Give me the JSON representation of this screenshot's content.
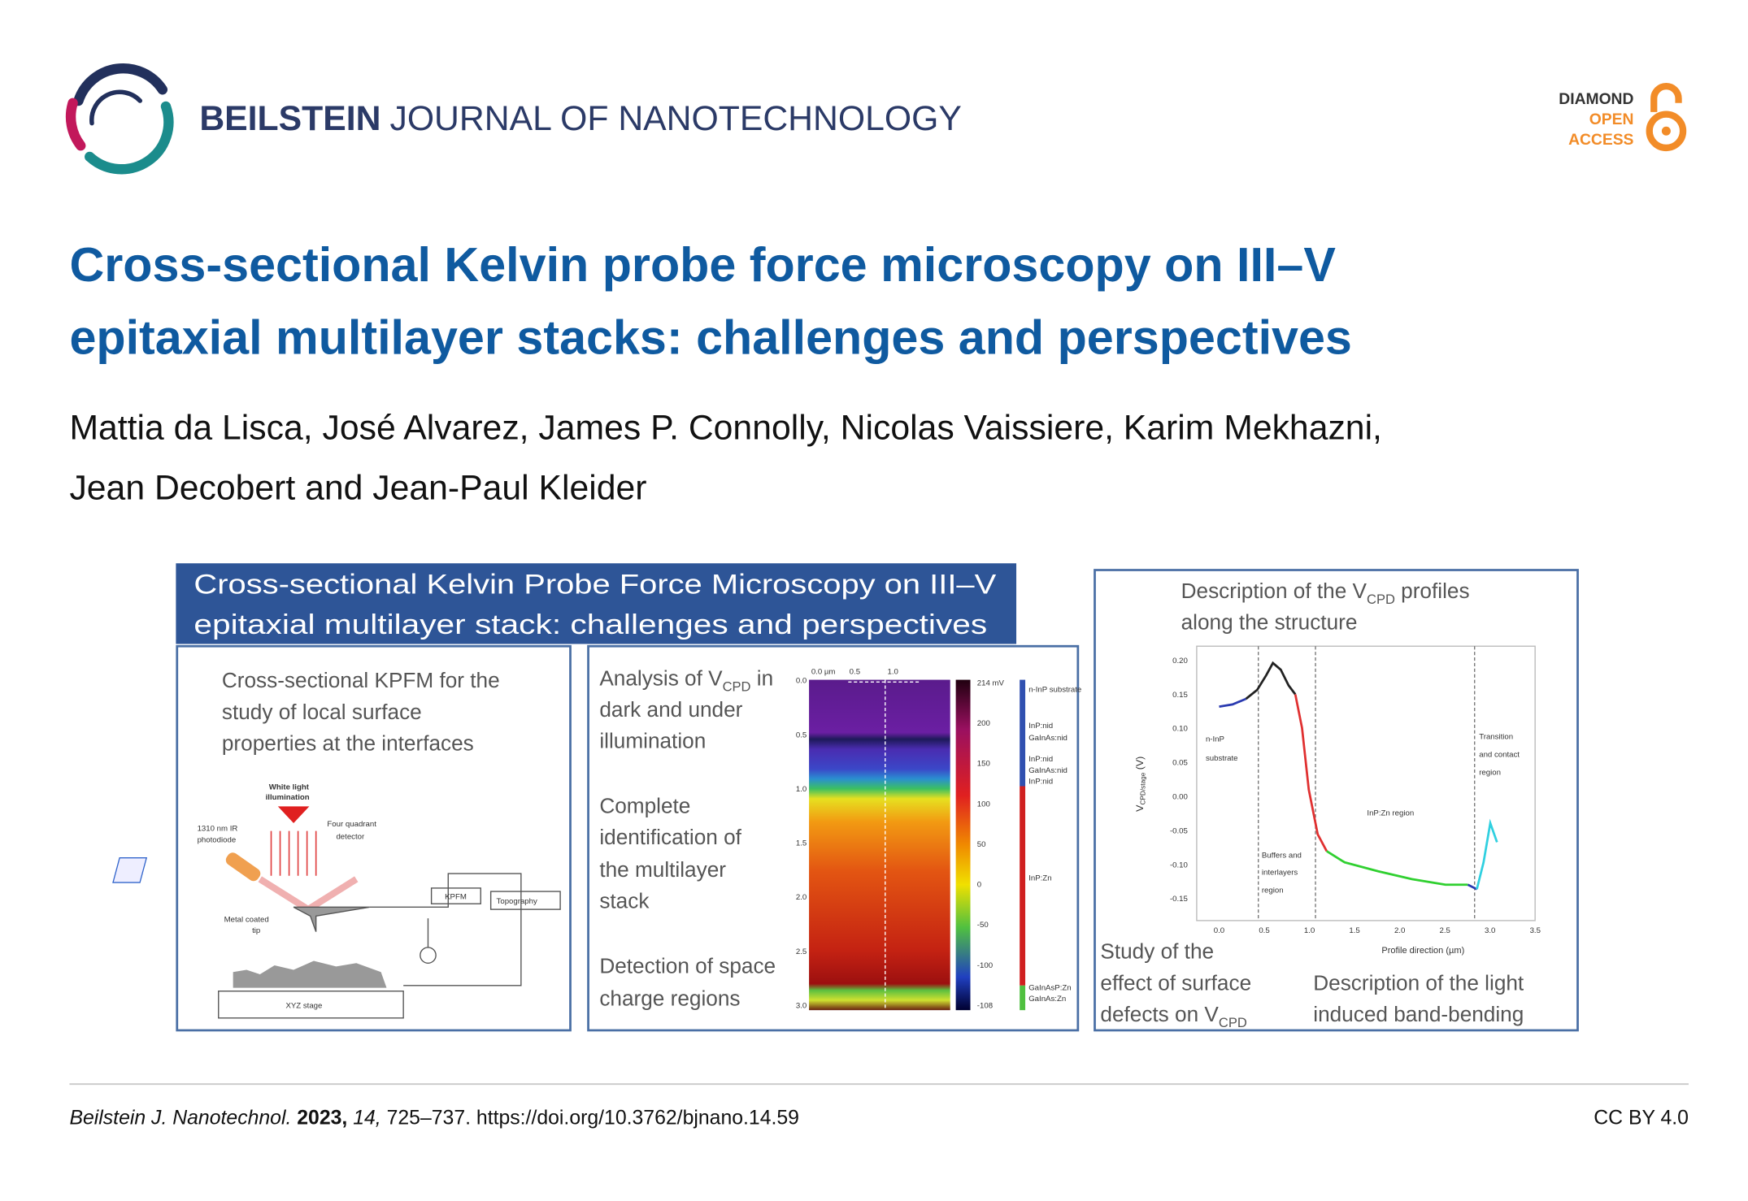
{
  "header": {
    "journal_bold": "BEILSTEIN",
    "journal_rest": "JOURNAL OF NANOTECHNOLOGY",
    "badge": [
      "DIAMOND",
      "OPEN",
      "ACCESS"
    ]
  },
  "article": {
    "title": [
      "Cross-sectional Kelvin probe force microscopy on III–V",
      "epitaxial multilayer stacks: challenges and perspectives"
    ],
    "authors": [
      "Mattia da Lisca, José Alvarez, James P. Connolly, Nicolas Vaissiere, Karim Mekhazni,",
      "Jean Decobert and Jean-Paul Kleider"
    ]
  },
  "graphical_abstract": {
    "heading": [
      "Cross-sectional Kelvin Probe Force Microscopy on III–V",
      "epitaxial multilayer stack: challenges and perspectives"
    ],
    "left_panel": {
      "text": [
        "Cross-sectional KPFM for the",
        "study of local surface",
        "properties at the interfaces"
      ],
      "labels": [
        "White light",
        "illumination",
        "1310 nm IR",
        "photodiode",
        "Four quadrant",
        "detector",
        "KPFM",
        "Topography",
        "Metal coated",
        "tip",
        "XYZ stage"
      ]
    },
    "middle_panel": {
      "analysis": [
        "Analysis of V",
        "CPD",
        " in"
      ],
      "text": [
        "dark and under",
        "illumination",
        "Complete",
        "identification of",
        "the multilayer",
        "stack",
        "Detection of space",
        "charge regions"
      ],
      "x_ticks": [
        "0.0 µm",
        "0.5",
        "1.0"
      ],
      "y_ticks": [
        "0.0",
        "0.5",
        "1.0",
        "1.5",
        "2.0",
        "2.5",
        "3.0"
      ],
      "colorbar_ticks": [
        "214 mV",
        "200",
        "150",
        "100",
        "50",
        "0",
        "-50",
        "-100",
        "-108"
      ],
      "layers": [
        "n-InP substrate",
        "InP:nid",
        "GaInAs:nid",
        "InP:nid",
        "GaInAs:nid",
        "InP:nid",
        "InP:Zn",
        "GaInAsP:Zn",
        "GaInAs:Zn"
      ]
    },
    "right_panel": {
      "description": [
        "Description of the V",
        "CPD",
        " profiles"
      ],
      "description_2": "along the structure",
      "y_ticks": [
        "0.20",
        "0.15",
        "0.10",
        "0.05",
        "0.00",
        "-0.05",
        "-0.10",
        "-0.15"
      ],
      "x_ticks": [
        "0.0",
        "0.5",
        "1.0",
        "1.5",
        "2.0",
        "2.5",
        "3.0",
        "3.5"
      ],
      "x_label": "Profile direction (µm)",
      "y_label": [
        "V",
        "CPD/stage",
        " (V)"
      ],
      "regions": [
        "n-InP",
        "substrate",
        "Buffers and",
        "interlayers",
        "region",
        "InP:Zn region",
        "Transition",
        "and contact",
        "region"
      ],
      "study": [
        "Study of the",
        "effect of surface",
        "defects on V",
        "CPD"
      ],
      "light": [
        "Description of the light",
        "induced band-bending"
      ]
    }
  },
  "footer": {
    "journal": "Beilstein J. Nanotechnol.",
    "year": "2023,",
    "volume": "14,",
    "pages_doi": "725–737. https://doi.org/10.3762/bjnano.14.59",
    "license": "CC BY 4.0"
  }
}
